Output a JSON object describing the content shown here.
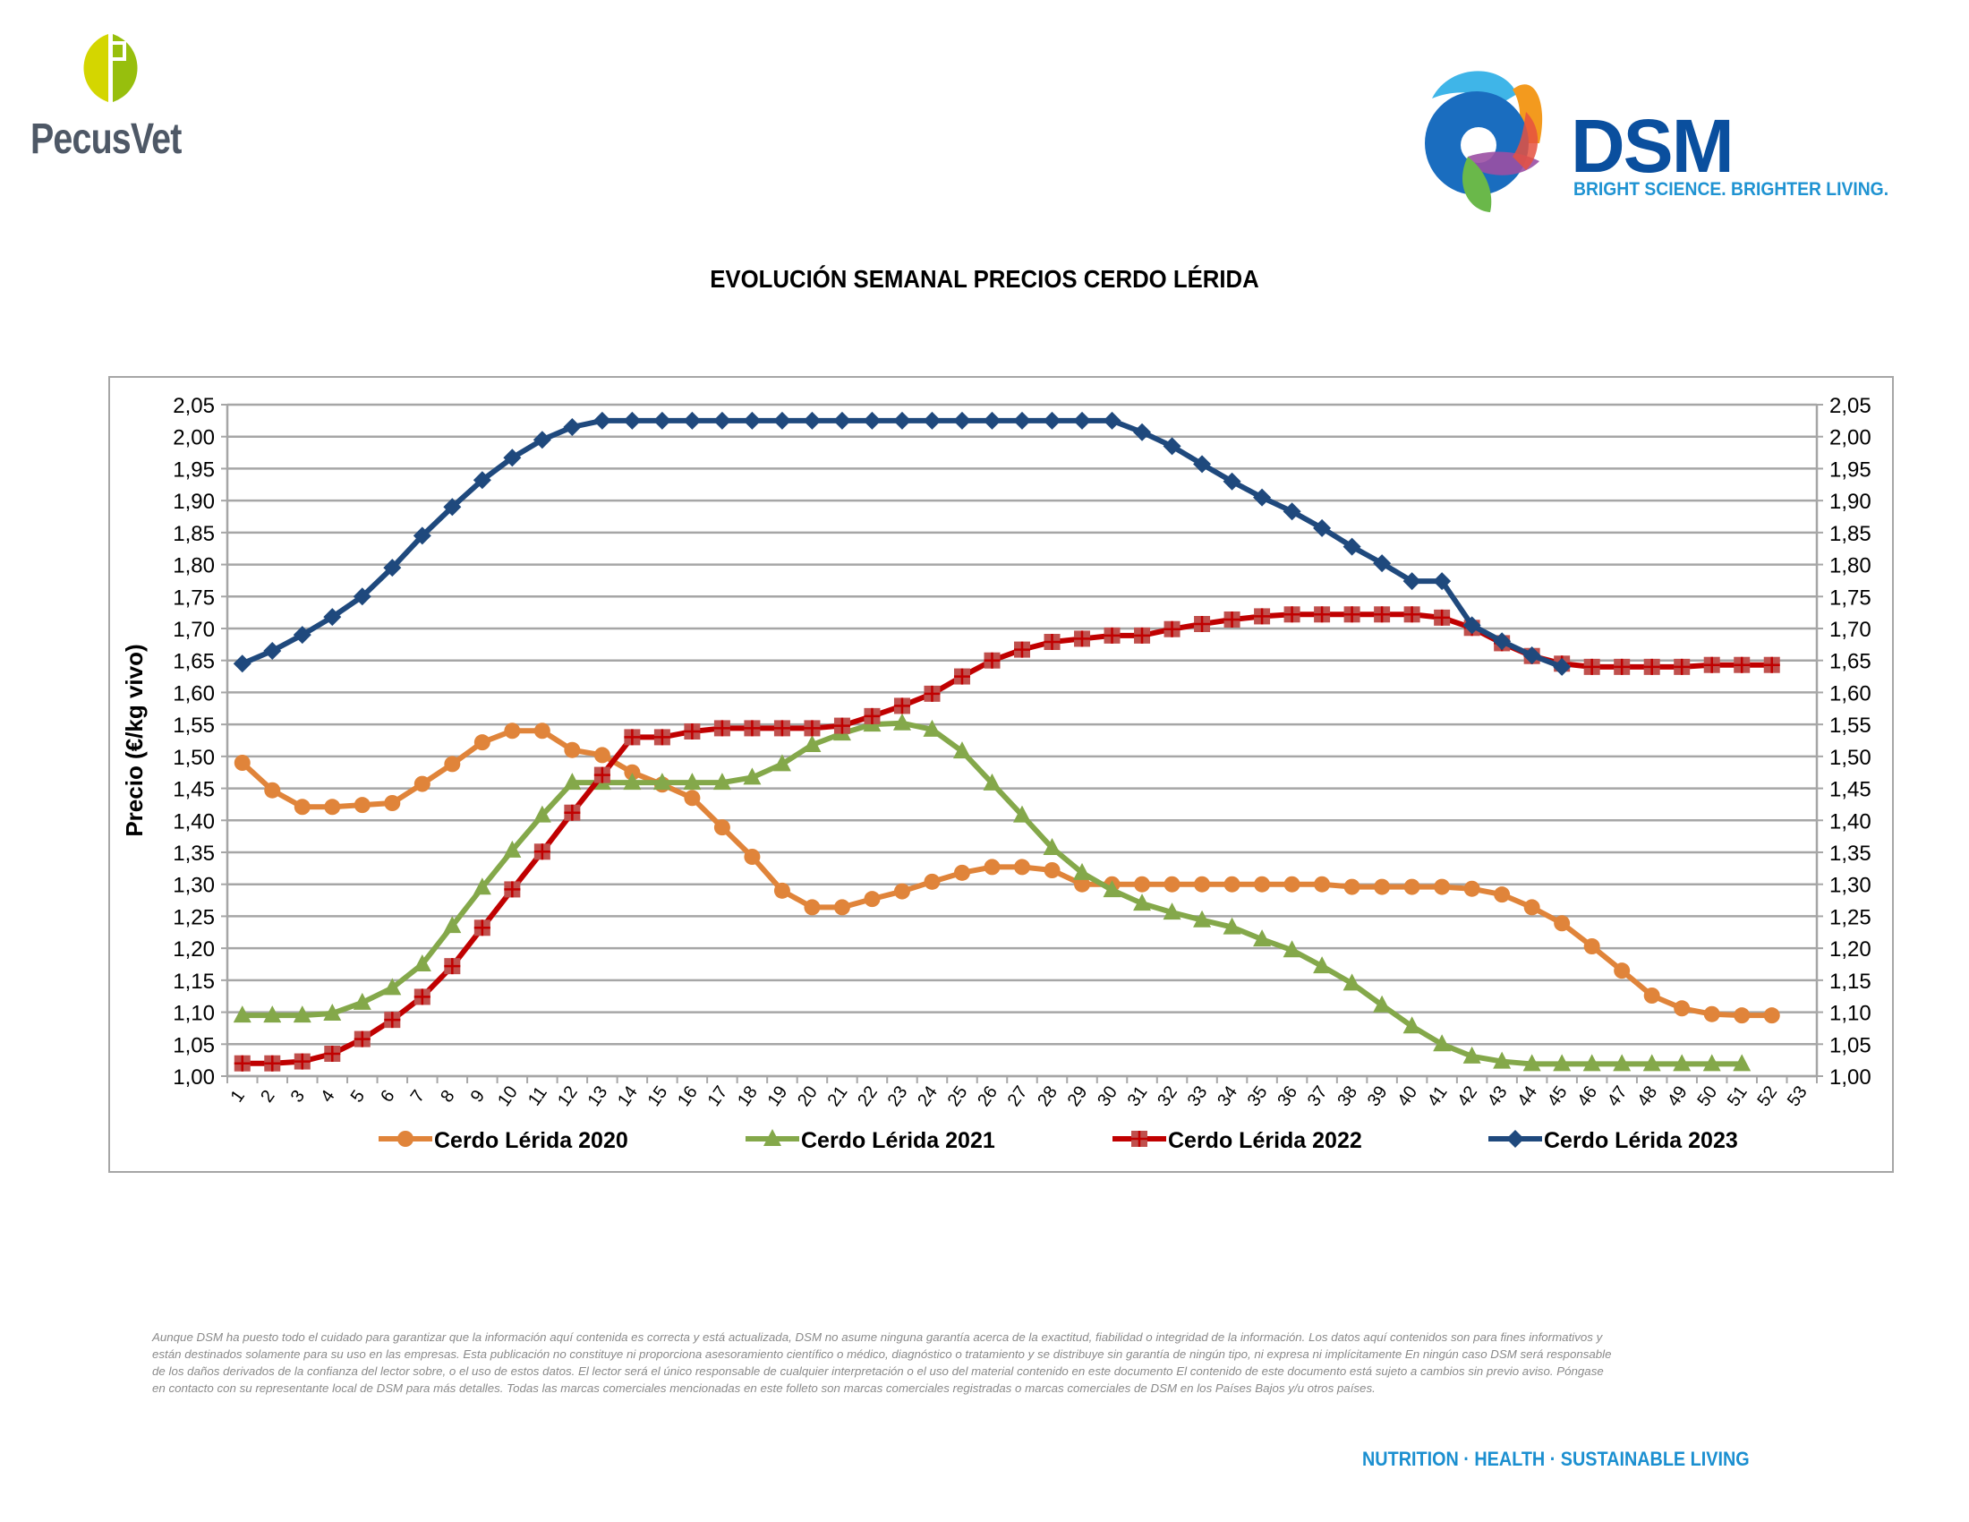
{
  "header": {
    "left_logo": {
      "name": "PecusVet",
      "icon": "p-circle-logo-icon",
      "colors": {
        "light": "#d4d600",
        "dark": "#97bf0d",
        "text": "#4e5866"
      }
    },
    "right_logo": {
      "name": "DSM",
      "tagline": "BRIGHT SCIENCE. BRIGHTER LIVING.",
      "icon": "dsm-swirl-logo-icon",
      "colors": {
        "text": "#0a4f9e",
        "tagline": "#1f93d2"
      }
    }
  },
  "footer": {
    "disclaimer": "Aunque DSM ha puesto todo el cuidado para garantizar que la información aquí contenida es correcta y está actualizada, DSM no asume ninguna garantía acerca de la exactitud, fiabilidad o integridad de la información. Los datos aquí contenidos son para fines informativos y están destinados solamente para su uso en las empresas. Esta publicación no constituye ni proporciona asesoramiento científico o médico, diagnóstico o tratamiento y se distribuye sin garantía de ningún tipo, ni expresa ni implícitamente En ningún caso DSM será responsable de los daños derivados de la confianza del lector sobre, o el uso de estos datos. El lector será el único responsable de cualquier interpretación o el uso del material contenido en este documento El contenido de este documento está sujeto a cambios sin previo aviso. Póngase en contacto con su representante local de DSM para más detalles. Todas las marcas comerciales mencionadas en este folleto son marcas comerciales registradas o marcas comerciales de DSM en los Países Bajos y/u otros países.",
    "slogan": "NUTRITION · HEALTH · SUSTAINABLE LIVING"
  },
  "chart_data": {
    "type": "line",
    "title": "EVOLUCIÓN SEMANAL PRECIOS CERDO LÉRIDA",
    "xlabel": "",
    "ylabel": "Precio (€/kg vivo)",
    "ylim": [
      1.0,
      2.05
    ],
    "ytick_step": 0.05,
    "yticks": [
      "1,00",
      "1,05",
      "1,10",
      "1,15",
      "1,20",
      "1,25",
      "1,30",
      "1,35",
      "1,40",
      "1,45",
      "1,50",
      "1,55",
      "1,60",
      "1,65",
      "1,70",
      "1,75",
      "1,80",
      "1,85",
      "1,90",
      "1,95",
      "2,00",
      "2,05"
    ],
    "secondary_y_axis": true,
    "grid": "horizontal",
    "legend_position": "bottom",
    "x": [
      1,
      2,
      3,
      4,
      5,
      6,
      7,
      8,
      9,
      10,
      11,
      12,
      13,
      14,
      15,
      16,
      17,
      18,
      19,
      20,
      21,
      22,
      23,
      24,
      25,
      26,
      27,
      28,
      29,
      30,
      31,
      32,
      33,
      34,
      35,
      36,
      37,
      38,
      39,
      40,
      41,
      42,
      43,
      44,
      45,
      46,
      47,
      48,
      49,
      50,
      51,
      52,
      53
    ],
    "series": [
      {
        "name": "Cerdo Lérida 2020",
        "color": "#e0843a",
        "marker": "circle",
        "values": [
          1.49,
          1.447,
          1.421,
          1.421,
          1.424,
          1.427,
          1.457,
          1.488,
          1.522,
          1.54,
          1.54,
          1.51,
          1.502,
          1.475,
          1.456,
          1.435,
          1.389,
          1.343,
          1.29,
          1.264,
          1.264,
          1.277,
          1.289,
          1.304,
          1.318,
          1.327,
          1.327,
          1.322,
          1.3,
          1.3,
          1.3,
          1.3,
          1.3,
          1.3,
          1.3,
          1.3,
          1.3,
          1.296,
          1.296,
          1.296,
          1.296,
          1.293,
          1.284,
          1.264,
          1.239,
          1.203,
          1.165,
          1.126,
          1.106,
          1.097,
          1.095,
          1.095
        ]
      },
      {
        "name": "Cerdo Lérida 2021",
        "color": "#84a84a",
        "marker": "triangle",
        "values": [
          1.095,
          1.095,
          1.095,
          1.098,
          1.115,
          1.138,
          1.175,
          1.235,
          1.295,
          1.353,
          1.408,
          1.459,
          1.459,
          1.459,
          1.459,
          1.459,
          1.459,
          1.467,
          1.488,
          1.518,
          1.536,
          1.55,
          1.552,
          1.542,
          1.508,
          1.458,
          1.408,
          1.357,
          1.318,
          1.291,
          1.27,
          1.256,
          1.244,
          1.233,
          1.214,
          1.197,
          1.172,
          1.145,
          1.111,
          1.078,
          1.05,
          1.031,
          1.023,
          1.019,
          1.019,
          1.019,
          1.019,
          1.019,
          1.019,
          1.019,
          1.019
        ]
      },
      {
        "name": "Cerdo Lérida 2022",
        "color": "#c00000",
        "marker": "square-plus",
        "values": [
          1.02,
          1.02,
          1.023,
          1.035,
          1.058,
          1.088,
          1.124,
          1.172,
          1.232,
          1.292,
          1.351,
          1.412,
          1.471,
          1.53,
          1.53,
          1.539,
          1.544,
          1.544,
          1.544,
          1.544,
          1.548,
          1.563,
          1.579,
          1.598,
          1.625,
          1.65,
          1.667,
          1.679,
          1.684,
          1.689,
          1.689,
          1.699,
          1.707,
          1.714,
          1.719,
          1.722,
          1.722,
          1.722,
          1.722,
          1.722,
          1.717,
          1.701,
          1.677,
          1.657,
          1.645,
          1.64,
          1.64,
          1.64,
          1.64,
          1.643,
          1.643,
          1.643
        ]
      },
      {
        "name": "Cerdo Lérida 2023",
        "color": "#1f497d",
        "marker": "diamond",
        "values": [
          1.645,
          1.665,
          1.69,
          1.718,
          1.75,
          1.795,
          1.845,
          1.89,
          1.932,
          1.967,
          1.995,
          2.015,
          2.025,
          2.025,
          2.025,
          2.025,
          2.025,
          2.025,
          2.025,
          2.025,
          2.025,
          2.025,
          2.025,
          2.025,
          2.025,
          2.025,
          2.025,
          2.025,
          2.025,
          2.025,
          2.007,
          1.985,
          1.957,
          1.93,
          1.905,
          1.883,
          1.857,
          1.828,
          1.802,
          1.774,
          1.774,
          1.705,
          1.68,
          1.658,
          1.64
        ]
      }
    ]
  }
}
